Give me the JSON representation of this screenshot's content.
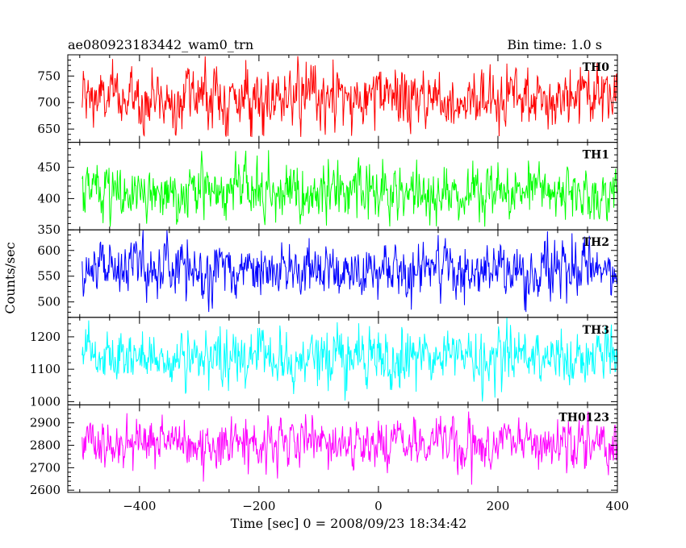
{
  "header": {
    "left_title": "ae080923183442_wam0_trn",
    "right_title": "Bin time: 1.0 s"
  },
  "chart_data": {
    "type": "line",
    "title": "ae080923183442_wam0_trn",
    "subtitle": "Bin time: 1.0 s",
    "xlabel": "Time [sec] 0 = 2008/09/23 18:34:42",
    "ylabel": "Counts/sec",
    "xlim": [
      -520,
      400
    ],
    "x_ticks": [
      -400,
      -200,
      0,
      200,
      400
    ],
    "x_tick_labels": [
      "−400",
      "−200",
      "0",
      "200",
      "400"
    ],
    "x_range": [
      -496,
      400
    ],
    "bin_time": 1.0,
    "grid": false,
    "panels": [
      {
        "name": "TH0",
        "color": "#ff0000",
        "ylim": [
          625,
          790
        ],
        "yticks": [
          650,
          700,
          750
        ],
        "ytick_labels": [
          "650",
          "700",
          "750"
        ],
        "mean": 708,
        "spread": 28,
        "min": 635,
        "max": 790
      },
      {
        "name": "TH1",
        "color": "#00ff00",
        "ylim": [
          350,
          490
        ],
        "yticks": [
          350,
          400,
          450
        ],
        "ytick_labels": [
          "350",
          "400",
          "450"
        ],
        "mean": 410,
        "spread": 22,
        "min": 355,
        "max": 480
      },
      {
        "name": "TH2",
        "color": "#0000ff",
        "ylim": [
          470,
          640
        ],
        "yticks": [
          500,
          550,
          600
        ],
        "ytick_labels": [
          "500",
          "550",
          "600"
        ],
        "mean": 560,
        "spread": 26,
        "min": 480,
        "max": 640
      },
      {
        "name": "TH3",
        "color": "#00ffff",
        "ylim": [
          990,
          1260
        ],
        "yticks": [
          1000,
          1100,
          1200
        ],
        "ytick_labels": [
          "1000",
          "1100",
          "1200"
        ],
        "mean": 1135,
        "spread": 40,
        "min": 1000,
        "max": 1260
      },
      {
        "name": "TH0123",
        "color": "#ff00ff",
        "ylim": [
          2590,
          2980
        ],
        "yticks": [
          2600,
          2700,
          2800,
          2900
        ],
        "ytick_labels": [
          "2600",
          "2700",
          "2800",
          "2900"
        ],
        "mean": 2815,
        "spread": 55,
        "min": 2620,
        "max": 2980
      }
    ]
  }
}
